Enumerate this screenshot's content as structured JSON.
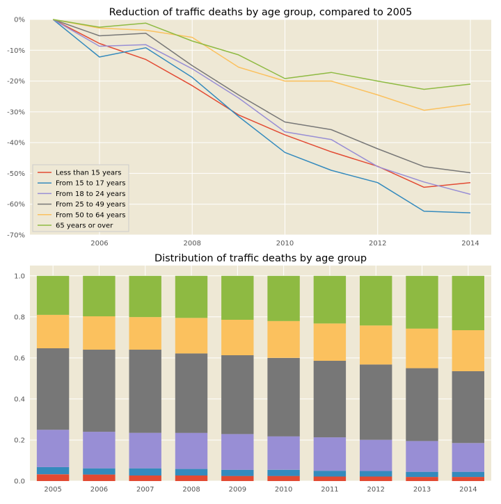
{
  "colors": {
    "plot_bg": "#EEE8D5",
    "grid": "#FFFFFF"
  },
  "chart_data": [
    {
      "type": "line",
      "title": "Reduction of traffic deaths by age group, compared to 2005",
      "xlabel": "",
      "ylabel": "",
      "x": [
        2005,
        2006,
        2007,
        2008,
        2009,
        2010,
        2011,
        2012,
        2013,
        2014
      ],
      "xlim": [
        2004.5,
        2014.45
      ],
      "ylim": [
        -70,
        0
      ],
      "xticks": [
        2006,
        2008,
        2010,
        2012,
        2014
      ],
      "xtick_labels": [
        "2006",
        "2008",
        "2010",
        "2012",
        "2014"
      ],
      "yticks": [
        0,
        -10,
        -20,
        -30,
        -40,
        -50,
        -60,
        -70
      ],
      "ytick_labels": [
        "0%",
        "-10%",
        "-20%",
        "-30%",
        "-40%",
        "-50%",
        "-60%",
        "-70%"
      ],
      "grid": true,
      "legend_position": "lower-left",
      "series": [
        {
          "name": "Less than 15 years",
          "color": "#E24A33",
          "values": [
            0,
            -7.8,
            -13.0,
            -21.5,
            -31.0,
            -37.5,
            -43.0,
            -47.7,
            -54.5,
            -53.0
          ]
        },
        {
          "name": "From 15 to 17 years",
          "color": "#348ABD",
          "values": [
            0,
            -12.2,
            -9.2,
            -18.8,
            -31.5,
            -43.2,
            -49.0,
            -53.0,
            -62.3,
            -62.8
          ]
        },
        {
          "name": "From 18 to 24 years",
          "color": "#988ED5",
          "values": [
            0,
            -8.7,
            -8.2,
            -16.0,
            -25.5,
            -36.5,
            -39.0,
            -47.8,
            -52.8,
            -56.8
          ]
        },
        {
          "name": "From 25 to 49 years",
          "color": "#777777",
          "values": [
            0,
            -5.3,
            -4.5,
            -15.0,
            -24.5,
            -33.3,
            -35.8,
            -42.0,
            -47.8,
            -49.8
          ]
        },
        {
          "name": "From 50 to 64 years",
          "color": "#FBC15E",
          "values": [
            0,
            -2.8,
            -3.5,
            -5.8,
            -15.5,
            -20.0,
            -20.0,
            -24.5,
            -29.5,
            -27.5
          ]
        },
        {
          "name": "65 years or over",
          "color": "#8EBA42",
          "values": [
            0,
            -2.5,
            -1.2,
            -7.0,
            -11.5,
            -19.2,
            -17.2,
            -20.0,
            -22.7,
            -21.0
          ]
        }
      ]
    },
    {
      "type": "bar",
      "stacked": true,
      "title": "Distribution of traffic deaths by age group",
      "xlabel": "",
      "ylabel": "",
      "categories": [
        "2005",
        "2006",
        "2007",
        "2008",
        "2009",
        "2010",
        "2011",
        "2012",
        "2013",
        "2014"
      ],
      "ylim": [
        0,
        1.05
      ],
      "yticks": [
        0.0,
        0.2,
        0.4,
        0.6,
        0.8,
        1.0
      ],
      "ytick_labels": [
        "0.0",
        "0.2",
        "0.4",
        "0.6",
        "0.8",
        "1.0"
      ],
      "grid": true,
      "series": [
        {
          "color": "#E24A33",
          "values": [
            0.033,
            0.032,
            0.027,
            0.027,
            0.025,
            0.025,
            0.022,
            0.022,
            0.02,
            0.02
          ]
        },
        {
          "color": "#348ABD",
          "values": [
            0.035,
            0.03,
            0.035,
            0.032,
            0.03,
            0.03,
            0.028,
            0.027,
            0.025,
            0.025
          ]
        },
        {
          "color": "#988ED5",
          "values": [
            0.182,
            0.178,
            0.173,
            0.176,
            0.174,
            0.163,
            0.163,
            0.152,
            0.15,
            0.14
          ]
        },
        {
          "color": "#777777",
          "values": [
            0.397,
            0.4,
            0.405,
            0.387,
            0.384,
            0.382,
            0.373,
            0.367,
            0.355,
            0.35
          ]
        },
        {
          "color": "#FBC15E",
          "values": [
            0.163,
            0.163,
            0.159,
            0.173,
            0.173,
            0.18,
            0.182,
            0.19,
            0.193,
            0.2
          ]
        },
        {
          "color": "#8EBA42",
          "values": [
            0.19,
            0.197,
            0.201,
            0.205,
            0.214,
            0.22,
            0.232,
            0.242,
            0.257,
            0.265
          ]
        }
      ]
    }
  ]
}
